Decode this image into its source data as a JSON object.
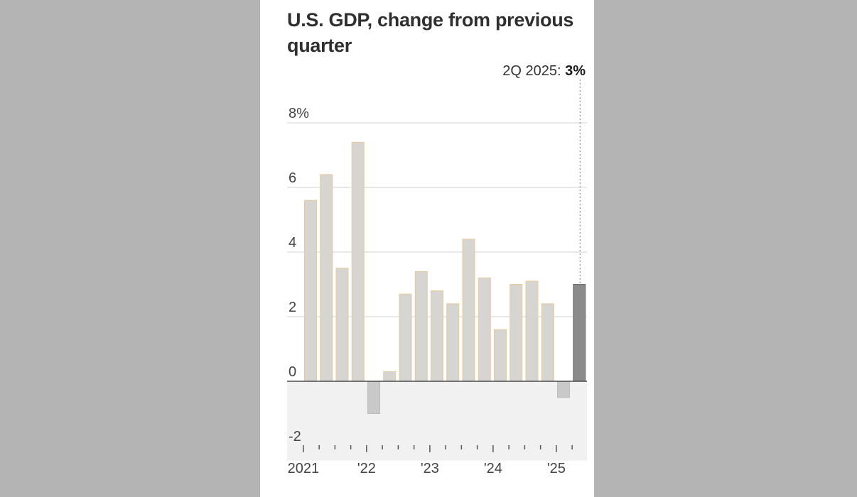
{
  "chart_data": {
    "type": "bar",
    "title": "U.S. GDP, change from previous quarter",
    "xlabel": "",
    "ylabel": "",
    "ylim": [
      -2.5,
      8
    ],
    "y_ticks": [
      {
        "value": 8,
        "label": "8%"
      },
      {
        "value": 6,
        "label": "6"
      },
      {
        "value": 4,
        "label": "4"
      },
      {
        "value": 2,
        "label": "2"
      },
      {
        "value": 0,
        "label": "0"
      },
      {
        "value": -2,
        "label": "-2"
      }
    ],
    "x_tick_labels": [
      {
        "quarter_index": 0,
        "label": "2021"
      },
      {
        "quarter_index": 4,
        "label": "'22"
      },
      {
        "quarter_index": 8,
        "label": "'23"
      },
      {
        "quarter_index": 12,
        "label": "'24"
      },
      {
        "quarter_index": 16,
        "label": "'25"
      }
    ],
    "categories": [
      "1Q 2021",
      "2Q 2021",
      "3Q 2021",
      "4Q 2021",
      "1Q 2022",
      "2Q 2022",
      "3Q 2022",
      "4Q 2022",
      "1Q 2023",
      "2Q 2023",
      "3Q 2023",
      "4Q 2023",
      "1Q 2024",
      "2Q 2024",
      "3Q 2024",
      "4Q 2024",
      "1Q 2025",
      "2Q 2025"
    ],
    "values": [
      5.6,
      6.4,
      3.5,
      7.4,
      -1.0,
      0.3,
      2.7,
      3.4,
      2.8,
      2.4,
      4.4,
      3.2,
      1.6,
      3.0,
      3.1,
      2.4,
      -0.5,
      3.0
    ],
    "highlight_index": 17,
    "callout": {
      "label": "2Q 2025: ",
      "value": "3%"
    },
    "grid": true,
    "colors": {
      "bar": "#d6d5d2",
      "bar_outline": "#e8c99a",
      "highlight": "#8a8a8a",
      "negative": "#c9c9c9",
      "negative_zone": "#f1f1f1",
      "grid": "#d2d2d2",
      "zero_line": "#4a4a4a"
    }
  }
}
